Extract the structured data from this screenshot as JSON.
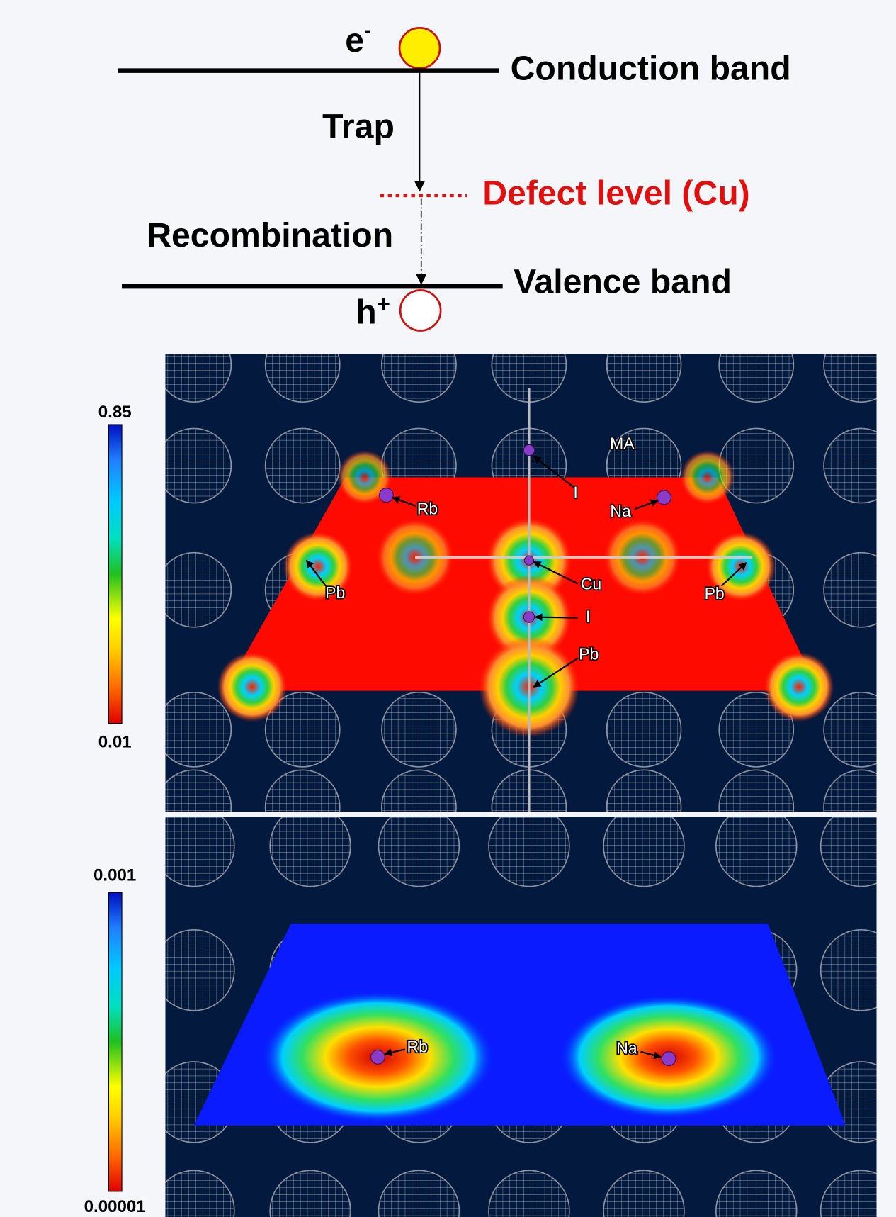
{
  "band_diagram": {
    "electron": {
      "symbol": "e",
      "charge": "-"
    },
    "conduction_band": "Conduction band",
    "trap": "Trap",
    "defect_level": "Defect level (Cu)",
    "recombination": "Recombination",
    "valence_band": "Valence band",
    "hole": {
      "symbol": "h",
      "charge": "+"
    }
  },
  "panels": [
    {
      "colorbar": {
        "max": "0.85",
        "min": "0.01"
      },
      "labels": [
        "MA",
        "I",
        "Rb",
        "Na",
        "Pb",
        "Cu",
        "Pb",
        "I",
        "Pb"
      ]
    },
    {
      "colorbar": {
        "max": "0.001",
        "min": "0.00001"
      },
      "labels": [
        "Rb",
        "Na"
      ]
    }
  ]
}
